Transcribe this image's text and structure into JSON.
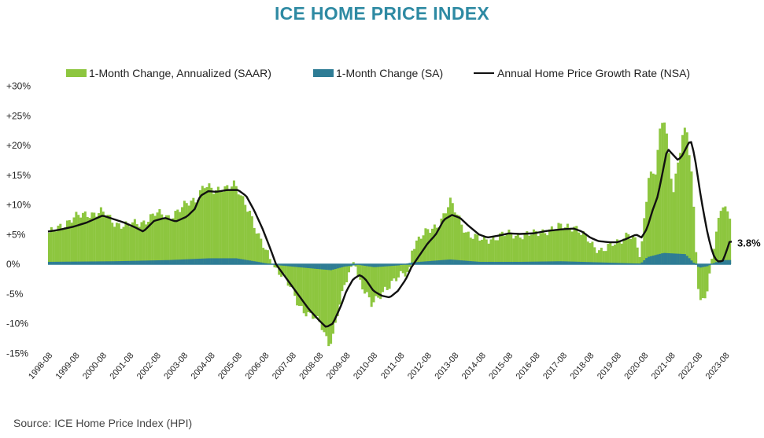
{
  "title": "ICE HOME PRICE INDEX",
  "source": "Source: ICE Home Price Index (HPI)",
  "chart_data": {
    "type": "bar",
    "legend": [
      {
        "label": "1-Month Change, Annualized (SAAR)",
        "kind": "bar",
        "color": "#8DC63F"
      },
      {
        "label": "1-Month Change (SA)",
        "kind": "bar",
        "color": "#2E7C95"
      },
      {
        "label": "Annual Home Price Growth Rate (NSA)",
        "kind": "line",
        "color": "#111111"
      }
    ],
    "ylim": [
      -15,
      30
    ],
    "yticks": [
      -15,
      -10,
      -5,
      0,
      5,
      10,
      15,
      20,
      25,
      30
    ],
    "ytick_labels": [
      "-15%",
      "-10%",
      "-5%",
      "0%",
      "+5%",
      "+10%",
      "+15%",
      "+20%",
      "+25%",
      "+30%"
    ],
    "x_categories": [
      "1998-08",
      "1999-08",
      "2000-08",
      "2001-08",
      "2002-08",
      "2003-08",
      "2004-08",
      "2005-08",
      "2006-08",
      "2007-08",
      "2008-08",
      "2009-08",
      "2010-08",
      "2011-08",
      "2012-08",
      "2013-08",
      "2014-08",
      "2015-08",
      "2016-08",
      "2017-08",
      "2018-08",
      "2019-08",
      "2020-08",
      "2021-08",
      "2022-08",
      "2023-08"
    ],
    "saar_anchors": [
      [
        1998.58,
        5.0
      ],
      [
        1999.0,
        6.5
      ],
      [
        1999.5,
        7.8
      ],
      [
        2000.0,
        8.5
      ],
      [
        2000.5,
        8.8
      ],
      [
        2001.0,
        7.0
      ],
      [
        2001.5,
        6.5
      ],
      [
        2002.0,
        7.0
      ],
      [
        2002.5,
        8.5
      ],
      [
        2003.0,
        8.0
      ],
      [
        2003.5,
        9.5
      ],
      [
        2004.0,
        11.0
      ],
      [
        2004.3,
        13.5
      ],
      [
        2004.7,
        12.0
      ],
      [
        2005.0,
        13.0
      ],
      [
        2005.4,
        13.5
      ],
      [
        2005.7,
        11.0
      ],
      [
        2006.0,
        9.0
      ],
      [
        2006.3,
        5.0
      ],
      [
        2006.6,
        2.0
      ],
      [
        2006.9,
        -0.5
      ],
      [
        2007.2,
        -1.5
      ],
      [
        2007.5,
        -4.0
      ],
      [
        2007.8,
        -7.0
      ],
      [
        2008.1,
        -8.0
      ],
      [
        2008.4,
        -9.0
      ],
      [
        2008.7,
        -11.0
      ],
      [
        2008.9,
        -13.5
      ],
      [
        2009.1,
        -11.5
      ],
      [
        2009.3,
        -7.0
      ],
      [
        2009.5,
        -4.0
      ],
      [
        2009.7,
        -1.0
      ],
      [
        2009.85,
        0.8
      ],
      [
        2010.0,
        -2.0
      ],
      [
        2010.2,
        -4.0
      ],
      [
        2010.5,
        -7.0
      ],
      [
        2010.7,
        -6.0
      ],
      [
        2011.0,
        -4.0
      ],
      [
        2011.3,
        -3.0
      ],
      [
        2011.6,
        -2.0
      ],
      [
        2011.9,
        -1.0
      ],
      [
        2012.0,
        3.0
      ],
      [
        2012.3,
        4.5
      ],
      [
        2012.6,
        5.5
      ],
      [
        2012.9,
        6.5
      ],
      [
        2013.2,
        8.5
      ],
      [
        2013.4,
        10.5
      ],
      [
        2013.7,
        8.0
      ],
      [
        2014.0,
        5.5
      ],
      [
        2014.3,
        4.5
      ],
      [
        2014.6,
        4.0
      ],
      [
        2015.0,
        4.5
      ],
      [
        2015.5,
        5.0
      ],
      [
        2016.0,
        5.0
      ],
      [
        2016.5,
        5.0
      ],
      [
        2017.0,
        5.8
      ],
      [
        2017.5,
        6.2
      ],
      [
        2018.0,
        6.5
      ],
      [
        2018.4,
        4.5
      ],
      [
        2018.7,
        3.0
      ],
      [
        2019.0,
        2.5
      ],
      [
        2019.3,
        3.0
      ],
      [
        2019.6,
        3.5
      ],
      [
        2020.0,
        5.5
      ],
      [
        2020.3,
        3.5
      ],
      [
        2020.45,
        0.5
      ],
      [
        2020.55,
        6.0
      ],
      [
        2020.75,
        15.0
      ],
      [
        2021.0,
        16.0
      ],
      [
        2021.15,
        22.0
      ],
      [
        2021.3,
        25.0
      ],
      [
        2021.45,
        20.0
      ],
      [
        2021.65,
        12.0
      ],
      [
        2021.85,
        18.0
      ],
      [
        2022.0,
        22.0
      ],
      [
        2022.15,
        23.0
      ],
      [
        2022.35,
        14.0
      ],
      [
        2022.5,
        2.0
      ],
      [
        2022.62,
        -7.0
      ],
      [
        2022.8,
        -5.0
      ],
      [
        2022.95,
        -4.0
      ],
      [
        2023.05,
        0.5
      ],
      [
        2023.25,
        5.0
      ],
      [
        2023.45,
        10.0
      ],
      [
        2023.6,
        9.0
      ],
      [
        2023.75,
        8.5
      ]
    ],
    "sa_anchors": [
      [
        1998.58,
        0.4
      ],
      [
        2001.0,
        0.5
      ],
      [
        2003.0,
        0.7
      ],
      [
        2004.5,
        1.0
      ],
      [
        2005.5,
        1.0
      ],
      [
        2006.3,
        0.4
      ],
      [
        2006.9,
        -0.1
      ],
      [
        2007.8,
        -0.5
      ],
      [
        2008.5,
        -0.8
      ],
      [
        2009.0,
        -1.0
      ],
      [
        2009.5,
        -0.4
      ],
      [
        2010.0,
        -0.1
      ],
      [
        2010.6,
        -0.5
      ],
      [
        2011.5,
        -0.2
      ],
      [
        2012.0,
        0.3
      ],
      [
        2013.4,
        0.8
      ],
      [
        2014.5,
        0.4
      ],
      [
        2016.0,
        0.4
      ],
      [
        2017.5,
        0.5
      ],
      [
        2019.0,
        0.3
      ],
      [
        2020.45,
        0.1
      ],
      [
        2020.7,
        1.2
      ],
      [
        2021.3,
        1.9
      ],
      [
        2022.1,
        1.7
      ],
      [
        2022.4,
        0.3
      ],
      [
        2022.62,
        -0.6
      ],
      [
        2022.95,
        -0.3
      ],
      [
        2023.1,
        0.1
      ],
      [
        2023.45,
        0.7
      ],
      [
        2023.75,
        0.7
      ]
    ],
    "nsa_anchors": [
      [
        1998.58,
        5.5
      ],
      [
        1999.0,
        5.8
      ],
      [
        1999.5,
        6.3
      ],
      [
        2000.0,
        7.0
      ],
      [
        2000.6,
        8.2
      ],
      [
        2001.0,
        7.6
      ],
      [
        2001.4,
        7.0
      ],
      [
        2001.8,
        6.2
      ],
      [
        2002.1,
        5.5
      ],
      [
        2002.5,
        7.3
      ],
      [
        2002.9,
        7.8
      ],
      [
        2003.3,
        7.2
      ],
      [
        2003.7,
        8.0
      ],
      [
        2004.0,
        9.3
      ],
      [
        2004.2,
        11.5
      ],
      [
        2004.5,
        12.3
      ],
      [
        2004.8,
        12.2
      ],
      [
        2005.2,
        12.5
      ],
      [
        2005.6,
        12.5
      ],
      [
        2005.9,
        11.5
      ],
      [
        2006.2,
        9.0
      ],
      [
        2006.5,
        6.0
      ],
      [
        2006.8,
        2.5
      ],
      [
        2007.0,
        0.0
      ],
      [
        2007.4,
        -2.5
      ],
      [
        2007.8,
        -5.0
      ],
      [
        2008.2,
        -7.5
      ],
      [
        2008.6,
        -9.5
      ],
      [
        2008.85,
        -10.6
      ],
      [
        2009.1,
        -10.0
      ],
      [
        2009.4,
        -7.0
      ],
      [
        2009.6,
        -4.5
      ],
      [
        2009.85,
        -2.5
      ],
      [
        2010.1,
        -1.8
      ],
      [
        2010.3,
        -2.5
      ],
      [
        2010.6,
        -4.5
      ],
      [
        2010.9,
        -5.3
      ],
      [
        2011.2,
        -5.6
      ],
      [
        2011.5,
        -4.5
      ],
      [
        2011.8,
        -2.5
      ],
      [
        2012.0,
        -0.5
      ],
      [
        2012.3,
        1.5
      ],
      [
        2012.6,
        3.5
      ],
      [
        2012.9,
        5.0
      ],
      [
        2013.2,
        7.5
      ],
      [
        2013.5,
        8.3
      ],
      [
        2013.8,
        7.8
      ],
      [
        2014.1,
        6.5
      ],
      [
        2014.5,
        5.0
      ],
      [
        2014.8,
        4.5
      ],
      [
        2015.2,
        4.8
      ],
      [
        2015.6,
        5.2
      ],
      [
        2016.0,
        5.1
      ],
      [
        2016.5,
        5.2
      ],
      [
        2017.0,
        5.6
      ],
      [
        2017.6,
        5.9
      ],
      [
        2018.0,
        6.0
      ],
      [
        2018.3,
        5.5
      ],
      [
        2018.6,
        4.5
      ],
      [
        2018.9,
        3.9
      ],
      [
        2019.3,
        3.7
      ],
      [
        2019.6,
        3.7
      ],
      [
        2019.9,
        4.2
      ],
      [
        2020.3,
        5.0
      ],
      [
        2020.5,
        4.5
      ],
      [
        2020.7,
        6.0
      ],
      [
        2020.9,
        9.0
      ],
      [
        2021.1,
        11.5
      ],
      [
        2021.3,
        16.0
      ],
      [
        2021.45,
        19.5
      ],
      [
        2021.65,
        18.5
      ],
      [
        2021.85,
        17.5
      ],
      [
        2022.0,
        18.3
      ],
      [
        2022.25,
        20.5
      ],
      [
        2022.35,
        20.6
      ],
      [
        2022.5,
        17.0
      ],
      [
        2022.7,
        11.0
      ],
      [
        2022.9,
        6.0
      ],
      [
        2023.05,
        3.0
      ],
      [
        2023.2,
        1.0
      ],
      [
        2023.35,
        0.4
      ],
      [
        2023.5,
        0.6
      ],
      [
        2023.62,
        2.0
      ],
      [
        2023.75,
        3.8
      ]
    ],
    "end_label": "3.8%"
  }
}
